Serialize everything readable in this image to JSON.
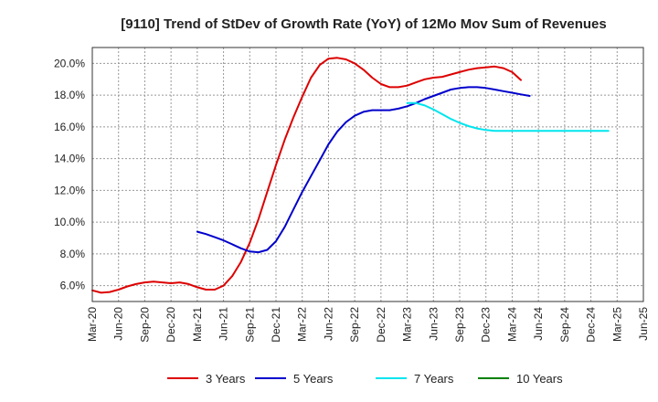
{
  "chart_data": {
    "type": "line",
    "title": "[9110]  Trend of StDev of Growth Rate (YoY) of 12Mo Mov Sum of Revenues",
    "xlabel": "",
    "ylabel": "",
    "ylim": [
      5.0,
      21.0
    ],
    "y_ticks": [
      6.0,
      8.0,
      10.0,
      12.0,
      14.0,
      16.0,
      18.0,
      20.0
    ],
    "y_tick_labels": [
      "6.0%",
      "8.0%",
      "10.0%",
      "12.0%",
      "14.0%",
      "16.0%",
      "18.0%",
      "20.0%"
    ],
    "x_tick_labels": [
      "Mar-20",
      "Jun-20",
      "Sep-20",
      "Dec-20",
      "Mar-21",
      "Jun-21",
      "Sep-21",
      "Dec-21",
      "Mar-22",
      "Jun-22",
      "Sep-22",
      "Dec-22",
      "Mar-23",
      "Jun-23",
      "Sep-23",
      "Dec-23",
      "Mar-24",
      "Jun-24",
      "Sep-24",
      "Dec-24",
      "Mar-25",
      "Jun-25"
    ],
    "grid": true,
    "legend_position": "bottom",
    "series": [
      {
        "name": "3 Years",
        "color": "#dd0000",
        "start_index": 0,
        "values": [
          5.7,
          5.55,
          5.6,
          5.75,
          5.95,
          6.1,
          6.2,
          6.25,
          6.2,
          6.15,
          6.2,
          6.1,
          5.9,
          5.75,
          5.75,
          6.0,
          6.6,
          7.5,
          8.7,
          10.2,
          11.9,
          13.6,
          15.2,
          16.6,
          17.9,
          19.1,
          19.9,
          20.3,
          20.35,
          20.25,
          20.0,
          19.6,
          19.1,
          18.7,
          18.5,
          18.5,
          18.6,
          18.8,
          19.0,
          19.1,
          19.15,
          19.3,
          19.45,
          19.6,
          19.7,
          19.75,
          19.8,
          19.7,
          19.45,
          18.95
        ]
      },
      {
        "name": "5 Years",
        "color": "#0000cc",
        "start_index": 12,
        "values": [
          9.4,
          9.25,
          9.05,
          8.85,
          8.6,
          8.35,
          8.15,
          8.1,
          8.25,
          8.8,
          9.7,
          10.8,
          11.9,
          12.9,
          13.9,
          14.9,
          15.7,
          16.3,
          16.7,
          16.95,
          17.05,
          17.05,
          17.05,
          17.15,
          17.3,
          17.5,
          17.75,
          17.95,
          18.15,
          18.35,
          18.45,
          18.5,
          18.5,
          18.45,
          18.35,
          18.25,
          18.15,
          18.05,
          17.95
        ]
      },
      {
        "name": "7 Years",
        "color": "#00e5ee",
        "start_index": 36,
        "values": [
          17.5,
          17.5,
          17.35,
          17.1,
          16.8,
          16.5,
          16.25,
          16.05,
          15.9,
          15.8,
          15.75,
          15.75,
          15.75,
          15.75,
          15.75,
          15.75,
          15.75,
          15.75,
          15.75,
          15.75,
          15.75,
          15.75,
          15.75,
          15.75
        ]
      },
      {
        "name": "10 Years",
        "color": "#008000",
        "start_index": 0,
        "values": []
      }
    ]
  }
}
